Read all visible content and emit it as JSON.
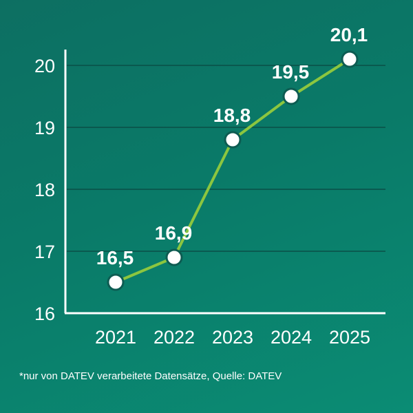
{
  "chart_data": {
    "type": "line",
    "x": [
      "2021",
      "2022",
      "2023",
      "2024",
      "2025"
    ],
    "values": [
      16.5,
      16.9,
      18.8,
      19.5,
      20.1
    ],
    "data_labels": [
      "16,5",
      "16,9",
      "18,8",
      "19,5",
      "20,1"
    ],
    "y_ticks": [
      16,
      17,
      18,
      19,
      20
    ],
    "ylim": [
      16,
      20.3
    ],
    "grid": true,
    "line_color": "#8cc63f",
    "marker_fill": "#ffffff",
    "marker_stroke": "#0d5c52",
    "title": "",
    "xlabel": "",
    "ylabel": ""
  },
  "footnote": "*nur von DATEV verarbeitete Datensätze, Quelle: DATEV"
}
